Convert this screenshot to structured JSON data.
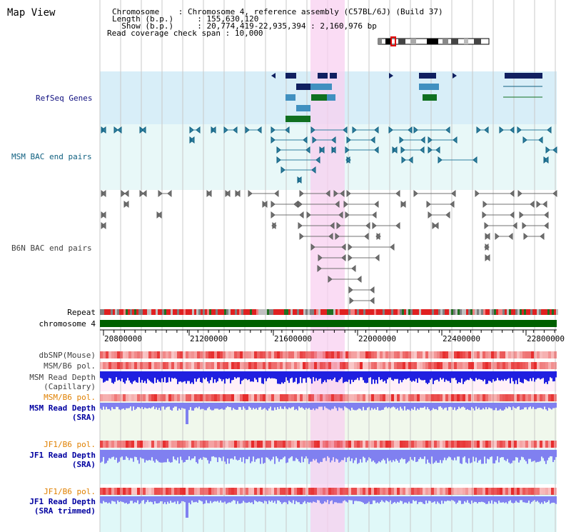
{
  "window": {
    "title": "Map View"
  },
  "info": {
    "chromosome_key": "Chromosome    ",
    "chromosome_val": ": Chromosome 4, reference assembly (C57BL/6J) (Build 37)",
    "length_key": "Length (b.p.)",
    "length_val": ": 155,630,120",
    "show_key": "  Show (b.p.)",
    "show_val": ": 20,774,419-22,935,394 : 2,160,976 bp",
    "coverage_key": "Read coverage check span",
    "coverage_val": ": 10,000"
  },
  "tracks": {
    "refseq": "RefSeq Genes",
    "msm_bac": "MSM BAC end pairs",
    "b6n_bac": "B6N BAC end pairs",
    "repeat": "Repeat",
    "chromosome": "chromosome 4",
    "dbsnp": "dbSNP(Mouse)",
    "msm_b6_pol": "MSM/B6 pol.",
    "msm_rd_cap_1": "MSM Read Depth",
    "msm_rd_cap_2": "(Capillary)",
    "msm_b6_pol_2": "MSM/B6 pol.",
    "msm_rd_sra_1": "MSM Read Depth",
    "msm_rd_sra_2": "(SRA)",
    "jf1_b6_pol": "JF1/B6 pol.",
    "jf1_rd_sra_1": "JF1 Read Depth",
    "jf1_rd_sra_2": "(SRA)",
    "jf1_b6_pol_2": "JF1/B6 pol.",
    "jf1_rd_trim_1": "JF1 Read Depth",
    "jf1_rd_trim_2": "(SRA trimmed)"
  },
  "axis": {
    "ticks": [
      "20800000",
      "21200000",
      "21600000",
      "22000000",
      "22400000",
      "22800000"
    ]
  },
  "colors": {
    "highlight": "#f8d8f0",
    "refseq_bg": "#d8eef8",
    "msm_bg": "#e8f8f8",
    "gene_navy": "#102060",
    "gene_light": "#4090c0",
    "gene_green": "#107020",
    "chrom_green": "#006000",
    "depth_blue": "#2020e0",
    "depth_light": "#8080f0",
    "pol_red": "#f06060"
  }
}
